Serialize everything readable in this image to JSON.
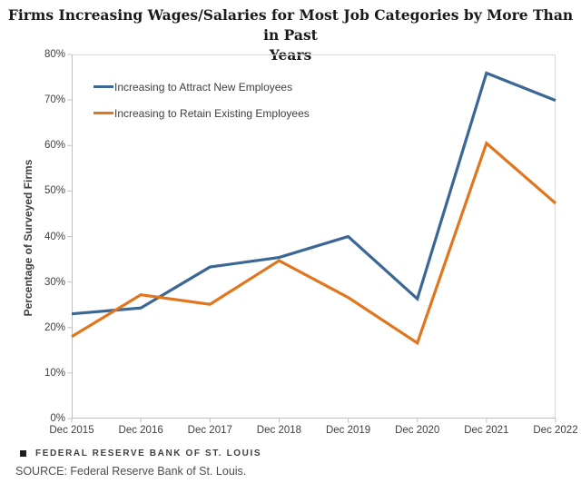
{
  "title": "Firms Increasing Wages/Salaries for Most Job Categories by More Than in Past Years",
  "title_lines": [
    "Firms Increasing Wages/Salaries for Most Job Categories by More Than in Past",
    "Years"
  ],
  "chart_data": {
    "type": "line",
    "categories": [
      "Dec 2015",
      "Dec 2016",
      "Dec 2017",
      "Dec 2018",
      "Dec 2019",
      "Dec 2020",
      "Dec 2021",
      "Dec 2022"
    ],
    "series": [
      {
        "name": "Increasing to Attract New Employees",
        "color": "#3A6795",
        "values": [
          23.0,
          24.3,
          33.3,
          35.4,
          40.0,
          26.3,
          75.9,
          69.9
        ]
      },
      {
        "name": "Increasing to Retain Existing Employees",
        "color": "#E1761E",
        "values": [
          18.0,
          27.2,
          25.1,
          34.7,
          26.6,
          16.6,
          60.5,
          47.3
        ]
      }
    ],
    "xlabel": "",
    "ylabel": "Percentage of Surveyed Firms",
    "ylim": [
      0,
      80
    ],
    "ytick_step": 10,
    "ytick_labels": [
      "0%",
      "10%",
      "20%",
      "30%",
      "40%",
      "50%",
      "60%",
      "70%",
      "80%"
    ],
    "grid": "off",
    "legend_position": "top-left-inside",
    "axis_color": "#BFBFBF",
    "border_color": "#D9D9D9"
  },
  "footer": {
    "brand": "FEDERAL RESERVE BANK OF ST. LOUIS",
    "brand_icon": "black-square-icon",
    "source": "SOURCE: Federal Reserve Bank of St. Louis."
  }
}
